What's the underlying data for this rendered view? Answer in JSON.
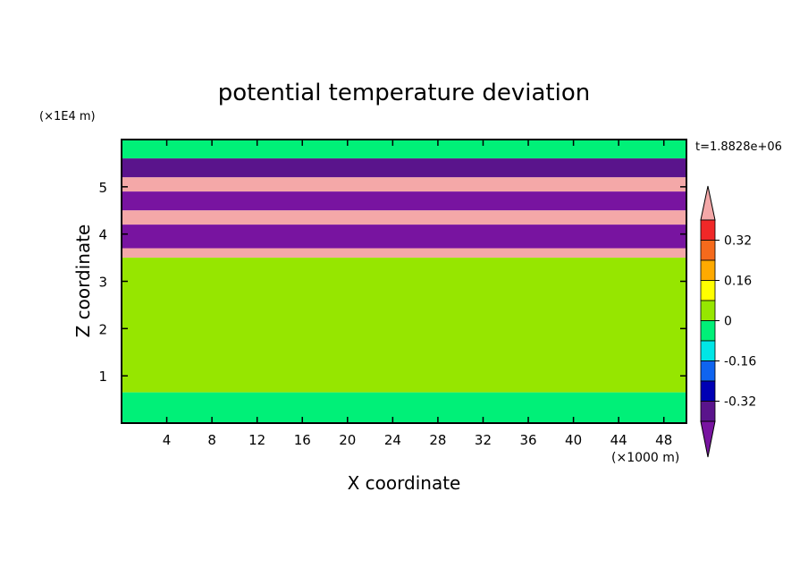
{
  "chart_data": {
    "type": "heatmap",
    "title": "potential temperature deviation",
    "xlabel": "X coordinate",
    "ylabel": "Z coordinate",
    "x_unit": "(×1000 m)",
    "y_unit": "(×1E4 m)",
    "time_label": "t=1.8828e+06",
    "xlim": [
      0,
      50
    ],
    "ylim": [
      0,
      6
    ],
    "x_ticks": [
      4,
      8,
      12,
      16,
      20,
      24,
      28,
      32,
      36,
      40,
      44,
      48
    ],
    "y_ticks": [
      1,
      2,
      3,
      4,
      5
    ],
    "colorbar": {
      "levels": [
        -0.4,
        -0.32,
        -0.24,
        -0.16,
        -0.08,
        0,
        0.08,
        0.16,
        0.24,
        0.32,
        0.4
      ],
      "tick_labels": [
        "0.32",
        "0.16",
        "0",
        "-0.16",
        "-0.32"
      ],
      "tick_values": [
        0.32,
        0.16,
        0,
        -0.16,
        -0.32
      ],
      "colors_high_to_low": [
        "#f4a8a8",
        "#f02828",
        "#f56a1c",
        "#ffaa00",
        "#ffff00",
        "#96e600",
        "#00f078",
        "#00e6e6",
        "#0f64f0",
        "#0000b4",
        "#5a148c",
        "#7814a0"
      ],
      "extend": "both"
    },
    "bands": [
      {
        "z": [
          5.6,
          6.0
        ],
        "value": 0.02,
        "color": "#00f078"
      },
      {
        "z": [
          5.2,
          5.6
        ],
        "value": -0.3,
        "color": "#5a148c"
      },
      {
        "z": [
          4.9,
          5.2
        ],
        "value": 0.4,
        "color": "#f4a8a8"
      },
      {
        "z": [
          4.5,
          4.9
        ],
        "value": -0.4,
        "color": "#7814a0"
      },
      {
        "z": [
          4.2,
          4.5
        ],
        "value": 0.4,
        "color": "#f4a8a8"
      },
      {
        "z": [
          3.7,
          4.2
        ],
        "value": -0.4,
        "color": "#7814a0"
      },
      {
        "z": [
          3.5,
          3.7
        ],
        "value": 0.4,
        "color": "#f4a8a8"
      },
      {
        "z": [
          0.65,
          3.5
        ],
        "value": 0.05,
        "color": "#96e600"
      },
      {
        "z": [
          0.0,
          0.65
        ],
        "value": 0.02,
        "color": "#00f078"
      }
    ]
  }
}
